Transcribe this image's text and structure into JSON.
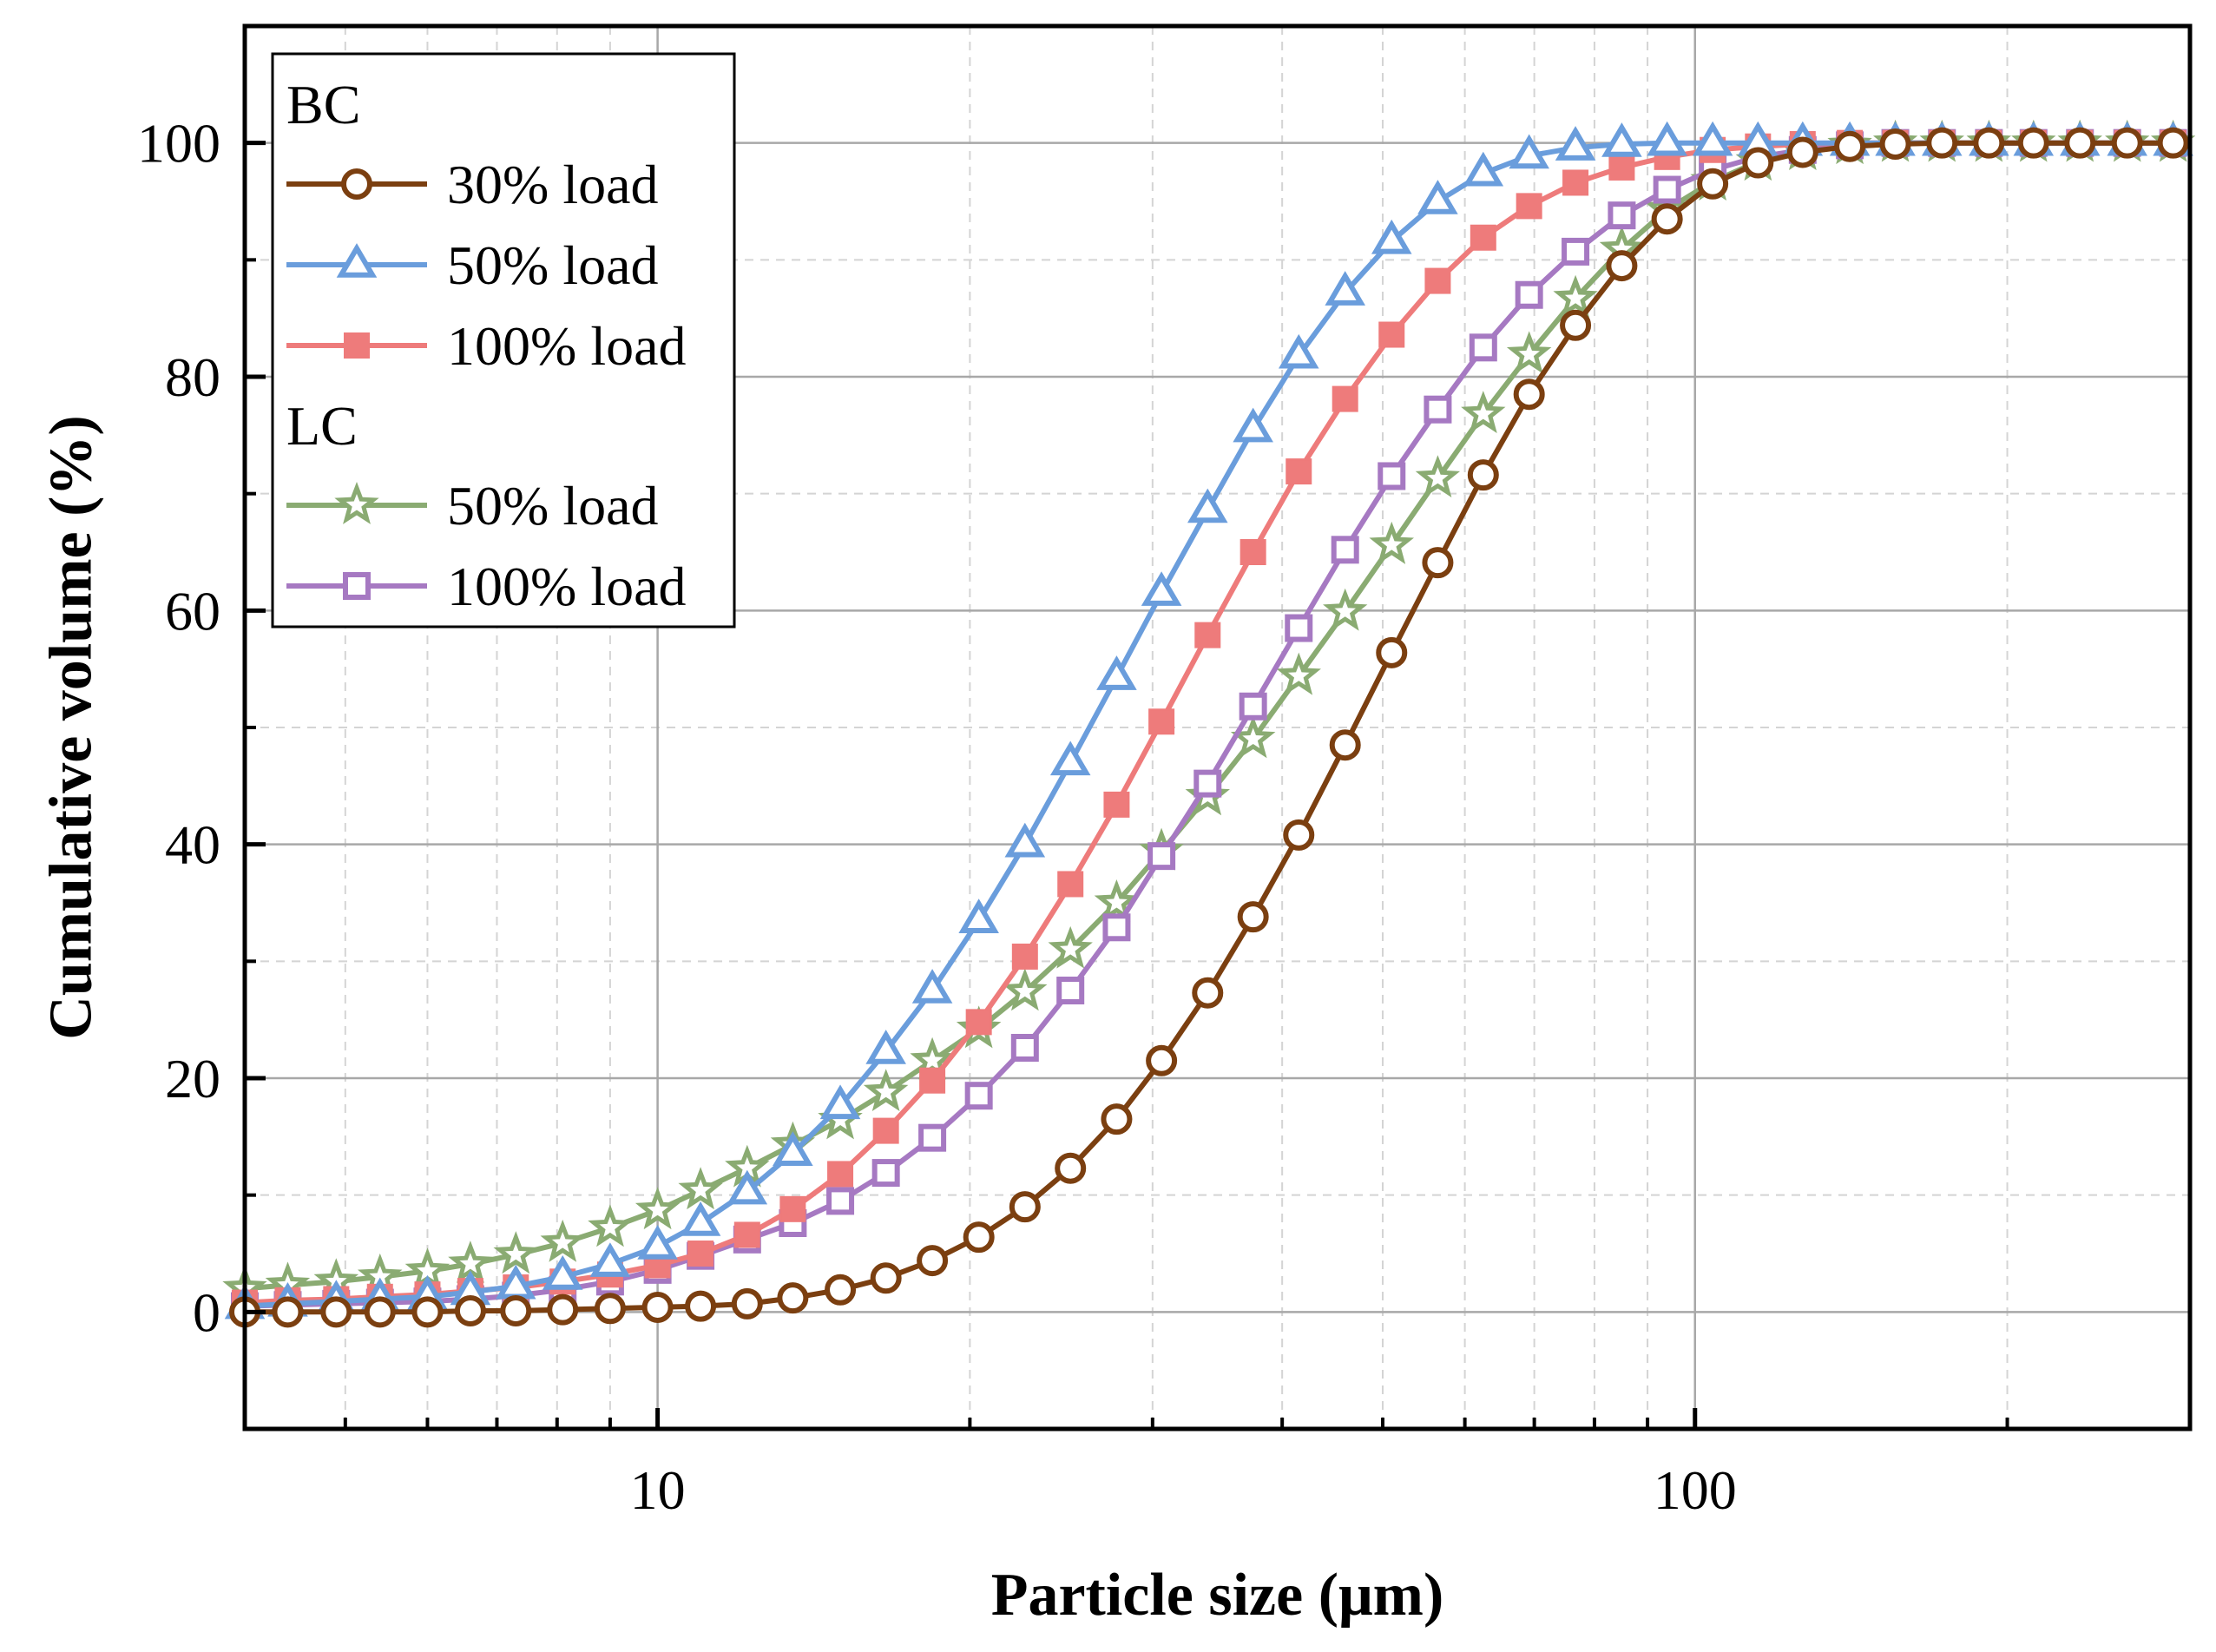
{
  "chart_data": {
    "type": "line",
    "xlabel": "Particle size (μm)",
    "ylabel": "Cumulative volume (%)",
    "xscale": "log",
    "xlim": [
      4.0,
      300
    ],
    "ylim": [
      -10,
      110
    ],
    "xticks": [
      10,
      100
    ],
    "xtick_labels": [
      "10",
      "100"
    ],
    "yticks": [
      0,
      20,
      40,
      60,
      80,
      100
    ],
    "ytick_labels": [
      "0",
      "20",
      "40",
      "60",
      "80",
      "100"
    ],
    "grid": true,
    "legend_position": "top-left",
    "legend_groups": [
      {
        "title": "BC",
        "series": [
          0,
          1,
          2
        ]
      },
      {
        "title": "LC",
        "series": [
          3,
          4
        ]
      }
    ],
    "x": [
      4.0,
      4.4,
      4.9,
      5.4,
      6.0,
      6.6,
      7.3,
      8.1,
      9.0,
      10.0,
      11.0,
      12.2,
      13.5,
      15.0,
      16.6,
      18.4,
      20.4,
      22.6,
      25.0,
      27.7,
      30.6,
      33.9,
      37.5,
      41.5,
      46.0,
      51.0,
      56.5,
      62.5,
      69.2,
      76.7,
      85.0,
      94.0,
      104.0,
      115.0,
      127.0,
      141.0,
      156.0,
      173.0,
      192.0,
      212.0,
      235.0,
      261.0,
      289.0
    ],
    "series": [
      {
        "name": "30% load",
        "color": "#7b3f10",
        "marker": "circle-open",
        "values": [
          0,
          0,
          0,
          0,
          0,
          0.1,
          0.1,
          0.2,
          0.3,
          0.4,
          0.5,
          0.7,
          1.2,
          1.9,
          2.9,
          4.4,
          6.4,
          9.0,
          12.3,
          16.5,
          21.5,
          27.3,
          33.8,
          40.8,
          48.5,
          56.4,
          64.1,
          71.6,
          78.5,
          84.4,
          89.5,
          93.5,
          96.5,
          98.3,
          99.2,
          99.7,
          99.9,
          100,
          100,
          100,
          100,
          100,
          100
        ]
      },
      {
        "name": "50% load",
        "color": "#6a9ddc",
        "marker": "triangle-open",
        "values": [
          0.5,
          0.7,
          0.9,
          1.1,
          1.3,
          1.7,
          2.2,
          3.0,
          4.1,
          5.6,
          7.6,
          10.3,
          13.6,
          17.6,
          22.3,
          27.5,
          33.5,
          40.0,
          47.0,
          54.3,
          61.5,
          68.6,
          75.5,
          81.8,
          87.2,
          91.6,
          95.0,
          97.4,
          98.9,
          99.6,
          99.9,
          100,
          100,
          100,
          100,
          100,
          100,
          100,
          100,
          100,
          100,
          100,
          100
        ]
      },
      {
        "name": "100% load",
        "color": "#ee7b7b",
        "marker": "square-filled",
        "values": [
          0.8,
          1.0,
          1.1,
          1.3,
          1.5,
          1.8,
          2.1,
          2.6,
          3.2,
          4.0,
          5.0,
          6.6,
          8.8,
          11.8,
          15.5,
          19.8,
          24.8,
          30.4,
          36.6,
          43.4,
          50.5,
          57.9,
          65.0,
          71.9,
          78.1,
          83.6,
          88.2,
          91.9,
          94.6,
          96.6,
          97.9,
          98.8,
          99.4,
          99.7,
          99.9,
          100,
          100,
          100,
          100,
          100,
          100,
          100,
          100
        ]
      },
      {
        "name": "50% load",
        "color": "#8aab72",
        "marker": "star-open",
        "values": [
          2.0,
          2.3,
          2.6,
          3.0,
          3.5,
          4.1,
          4.9,
          5.9,
          7.2,
          8.7,
          10.4,
          12.3,
          14.3,
          16.4,
          18.8,
          21.5,
          24.2,
          27.4,
          31.0,
          35.0,
          39.4,
          44.1,
          49.0,
          54.4,
          59.9,
          65.6,
          71.3,
          76.8,
          81.9,
          86.7,
          90.9,
          94.3,
          96.7,
          98.4,
          99.3,
          99.8,
          100,
          100,
          100,
          100,
          100,
          100,
          100
        ]
      },
      {
        "name": "100% load",
        "color": "#a679c2",
        "marker": "square-open",
        "values": [
          0.5,
          0.6,
          0.7,
          0.8,
          0.9,
          1.1,
          1.4,
          1.9,
          2.6,
          3.6,
          4.8,
          6.2,
          7.6,
          9.5,
          11.9,
          14.9,
          18.5,
          22.6,
          27.5,
          32.9,
          39.0,
          45.2,
          51.8,
          58.5,
          65.2,
          71.5,
          77.2,
          82.5,
          87.0,
          90.7,
          93.8,
          96.0,
          97.7,
          98.8,
          99.4,
          99.8,
          100,
          100,
          100,
          100,
          100,
          100,
          100
        ]
      }
    ]
  }
}
